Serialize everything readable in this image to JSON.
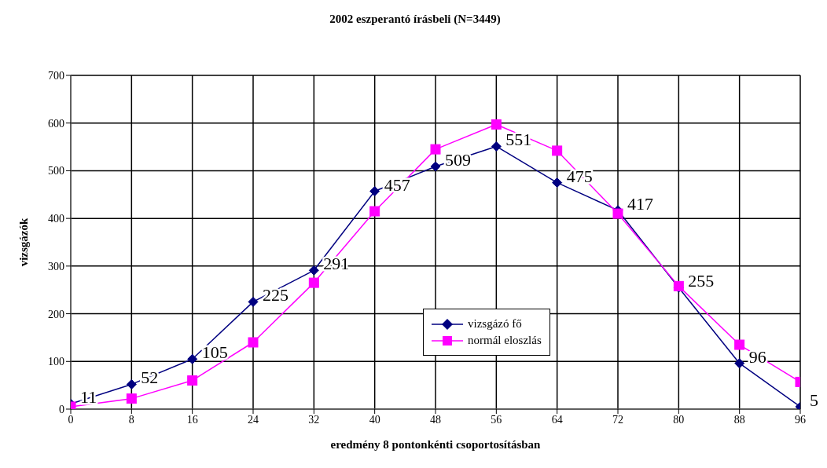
{
  "chart_data": {
    "type": "line",
    "title": "2002 eszperantó írásbeli (N=3449)",
    "xlabel": "eredmény 8 pontonkénti csoportosításban",
    "ylabel": "vizsgázók",
    "x": [
      0,
      8,
      16,
      24,
      32,
      40,
      48,
      56,
      64,
      72,
      80,
      88,
      96
    ],
    "series": [
      {
        "name": "vizsgázó fő",
        "color": "#000080",
        "marker": "diamond",
        "values": [
          11,
          52,
          105,
          225,
          291,
          457,
          509,
          551,
          475,
          417,
          255,
          96,
          5
        ],
        "value_labels": [
          "11",
          "52",
          "105",
          "225",
          "291",
          "457",
          "509",
          "551",
          "475",
          "417",
          "255",
          "96",
          "5"
        ]
      },
      {
        "name": "normál eloszlás",
        "color": "#ff00ff",
        "marker": "square",
        "values": [
          5,
          22,
          60,
          140,
          265,
          415,
          545,
          597,
          542,
          410,
          258,
          135,
          57
        ]
      }
    ],
    "xlim": [
      0,
      96
    ],
    "xticks": [
      0,
      8,
      16,
      24,
      32,
      40,
      48,
      56,
      64,
      72,
      80,
      88,
      96
    ],
    "ylim": [
      0,
      700
    ],
    "yticks": [
      0,
      100,
      200,
      300,
      400,
      500,
      600,
      700
    ],
    "grid": true,
    "legend": "center"
  }
}
